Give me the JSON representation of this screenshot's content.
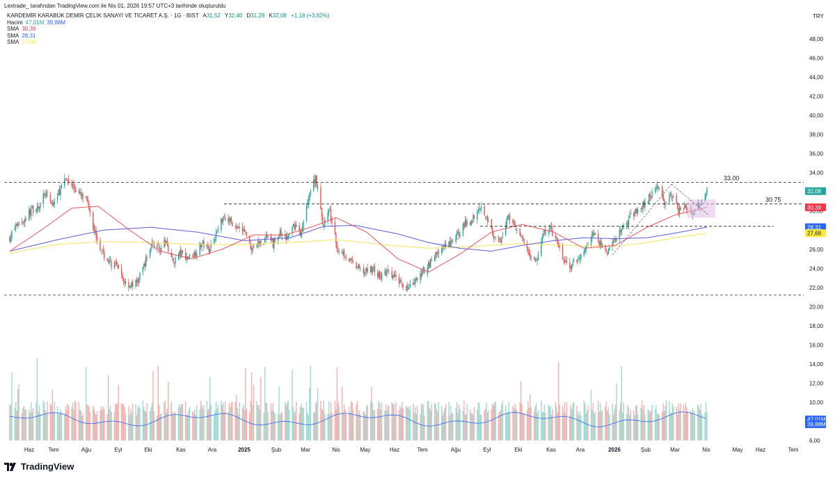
{
  "header": {
    "author_line": "Lextrade_ tarafından TradingView.com ile Nis 01, 2026 19:57 UTC+3 tarihinde oluşturuldu"
  },
  "legend": {
    "symbol": "KARDEMİR KARABÜK DEMİR ÇELİK SANAYİ VE TİCARET A.Ş. · 1G · BIST",
    "o_label": "A",
    "o": "31,52",
    "h_label": "Y",
    "h": "32,40",
    "l_label": "D",
    "l": "31,28",
    "c_label": "K",
    "c": "32,08",
    "change": "+1,18 (+3,82%)",
    "volume_label": "Hacim",
    "volume": "47,01M",
    "volume_ma": "39,88M",
    "sma1_label": "SMA",
    "sma1": "30,39",
    "sma2_label": "SMA",
    "sma2": "28,31",
    "sma3_label": "SMA",
    "sma3": "27,68"
  },
  "brand": "TradingView",
  "chart_data": {
    "type": "candlestick",
    "currency": "TRY",
    "y_ticks": [
      "48,00",
      "46,00",
      "44,00",
      "42,00",
      "40,00",
      "38,00",
      "36,00",
      "34,00",
      "32,00",
      "30,00",
      "28,00",
      "26,00",
      "24,00",
      "22,00",
      "20,00",
      "18,00",
      "16,00",
      "14,00",
      "12,00",
      "10,00",
      "8,00",
      "6,00"
    ],
    "x_ticks": [
      "Haz",
      "Tem",
      "Ağu",
      "Eyl",
      "Eki",
      "Kas",
      "Ara",
      "2025",
      "Şub",
      "Mar",
      "Nis",
      "May",
      "Haz",
      "Tem",
      "Ağu",
      "Eyl",
      "Eki",
      "Kas",
      "Ara",
      "2026",
      "Şub",
      "Mar",
      "Nis",
      "May",
      "Haz",
      "Tem"
    ],
    "bold_ticks": [
      "2025",
      "2026"
    ],
    "price_range": [
      5.0,
      50.0
    ],
    "close_path": [
      [
        "2024-05-15",
        27.2
      ],
      [
        "2024-05-22",
        28.6
      ],
      [
        "2024-05-29",
        29.0
      ],
      [
        "2024-06-05",
        30.1
      ],
      [
        "2024-06-12",
        30.5
      ],
      [
        "2024-06-19",
        31.8
      ],
      [
        "2024-06-26",
        30.6
      ],
      [
        "2024-07-03",
        32.1
      ],
      [
        "2024-07-10",
        33.4
      ],
      [
        "2024-07-17",
        32.5
      ],
      [
        "2024-07-24",
        31.6
      ],
      [
        "2024-07-31",
        30.9
      ],
      [
        "2024-08-07",
        27.8
      ],
      [
        "2024-08-14",
        25.6
      ],
      [
        "2024-08-21",
        24.6
      ],
      [
        "2024-08-28",
        24.2
      ],
      [
        "2024-09-04",
        22.7
      ],
      [
        "2024-09-11",
        22.2
      ],
      [
        "2024-09-18",
        22.6
      ],
      [
        "2024-09-25",
        24.6
      ],
      [
        "2024-10-02",
        26.6
      ],
      [
        "2024-10-09",
        26.0
      ],
      [
        "2024-10-16",
        26.8
      ],
      [
        "2024-10-23",
        24.6
      ],
      [
        "2024-10-30",
        25.6
      ],
      [
        "2024-11-06",
        25.1
      ],
      [
        "2024-11-13",
        25.6
      ],
      [
        "2024-11-20",
        26.6
      ],
      [
        "2024-11-27",
        26.1
      ],
      [
        "2024-12-04",
        27.6
      ],
      [
        "2024-12-11",
        29.5
      ],
      [
        "2024-12-18",
        29.0
      ],
      [
        "2024-12-25",
        28.0
      ],
      [
        "2025-01-01",
        28.0
      ],
      [
        "2025-01-08",
        26.1
      ],
      [
        "2025-01-15",
        26.6
      ],
      [
        "2025-01-22",
        27.1
      ],
      [
        "2025-01-29",
        26.6
      ],
      [
        "2025-02-05",
        27.6
      ],
      [
        "2025-02-12",
        27.1
      ],
      [
        "2025-02-19",
        28.6
      ],
      [
        "2025-02-26",
        27.6
      ],
      [
        "2025-03-05",
        31.6
      ],
      [
        "2025-03-12",
        33.6
      ],
      [
        "2025-03-19",
        28.6
      ],
      [
        "2025-03-26",
        30.0
      ],
      [
        "2025-04-02",
        26.1
      ],
      [
        "2025-04-09",
        25.6
      ],
      [
        "2025-04-16",
        24.6
      ],
      [
        "2025-04-23",
        24.0
      ],
      [
        "2025-04-30",
        23.6
      ],
      [
        "2025-05-07",
        24.1
      ],
      [
        "2025-05-14",
        23.1
      ],
      [
        "2025-05-21",
        23.6
      ],
      [
        "2025-05-28",
        23.1
      ],
      [
        "2025-06-04",
        22.6
      ],
      [
        "2025-06-11",
        21.8
      ],
      [
        "2025-06-18",
        22.6
      ],
      [
        "2025-06-25",
        23.6
      ],
      [
        "2025-07-02",
        24.6
      ],
      [
        "2025-07-09",
        25.6
      ],
      [
        "2025-07-16",
        26.1
      ],
      [
        "2025-07-23",
        26.6
      ],
      [
        "2025-07-30",
        27.6
      ],
      [
        "2025-08-06",
        28.6
      ],
      [
        "2025-08-13",
        29.1
      ],
      [
        "2025-08-20",
        30.6
      ],
      [
        "2025-08-27",
        29.6
      ],
      [
        "2025-09-03",
        27.1
      ],
      [
        "2025-09-10",
        26.6
      ],
      [
        "2025-09-17",
        29.6
      ],
      [
        "2025-09-24",
        28.6
      ],
      [
        "2025-10-01",
        27.1
      ],
      [
        "2025-10-08",
        25.6
      ],
      [
        "2025-10-15",
        24.6
      ],
      [
        "2025-10-22",
        27.6
      ],
      [
        "2025-10-29",
        28.1
      ],
      [
        "2025-11-05",
        26.6
      ],
      [
        "2025-11-12",
        24.6
      ],
      [
        "2025-11-19",
        24.1
      ],
      [
        "2025-11-26",
        25.1
      ],
      [
        "2025-12-03",
        26.1
      ],
      [
        "2025-12-10",
        27.6
      ],
      [
        "2025-12-17",
        26.6
      ],
      [
        "2025-12-24",
        25.6
      ],
      [
        "2025-12-31",
        27.1
      ],
      [
        "2026-01-07",
        28.1
      ],
      [
        "2026-01-14",
        29.1
      ],
      [
        "2026-01-21",
        30.1
      ],
      [
        "2026-01-28",
        30.6
      ],
      [
        "2026-02-04",
        31.6
      ],
      [
        "2026-02-11",
        32.6
      ],
      [
        "2026-02-18",
        31.1
      ],
      [
        "2026-02-25",
        31.6
      ],
      [
        "2026-03-04",
        30.1
      ],
      [
        "2026-03-11",
        30.6
      ],
      [
        "2026-03-18",
        29.6
      ],
      [
        "2026-03-25",
        30.9
      ],
      [
        "2026-04-01",
        32.08
      ]
    ],
    "sma_long": [
      [
        "2024-05-15",
        25.8
      ],
      [
        "2024-07-01",
        27.0
      ],
      [
        "2024-08-15",
        28.0
      ],
      [
        "2024-10-01",
        28.3
      ],
      [
        "2024-11-15",
        27.8
      ],
      [
        "2025-01-01",
        26.9
      ],
      [
        "2025-02-15",
        27.2
      ],
      [
        "2025-03-20",
        28.4
      ],
      [
        "2025-04-20",
        28.5
      ],
      [
        "2025-06-01",
        27.6
      ],
      [
        "2025-07-01",
        26.7
      ],
      [
        "2025-08-01",
        26.1
      ],
      [
        "2025-09-01",
        25.8
      ],
      [
        "2025-10-01",
        26.4
      ],
      [
        "2025-11-01",
        26.9
      ],
      [
        "2025-12-01",
        27.2
      ],
      [
        "2026-01-01",
        27.1
      ],
      [
        "2026-02-01",
        27.2
      ],
      [
        "2026-03-01",
        27.7
      ],
      [
        "2026-04-01",
        28.31
      ]
    ],
    "sma_200": [
      [
        "2024-05-15",
        25.6
      ],
      [
        "2024-07-01",
        26.5
      ],
      [
        "2024-08-15",
        26.8
      ],
      [
        "2024-10-01",
        26.7
      ],
      [
        "2024-11-15",
        26.5
      ],
      [
        "2025-01-01",
        26.5
      ],
      [
        "2025-02-15",
        26.7
      ],
      [
        "2025-04-01",
        27.0
      ],
      [
        "2025-05-15",
        26.5
      ],
      [
        "2025-07-01",
        26.1
      ],
      [
        "2025-08-15",
        26.3
      ],
      [
        "2025-10-01",
        26.6
      ],
      [
        "2025-11-15",
        26.4
      ],
      [
        "2026-01-01",
        26.3
      ],
      [
        "2026-02-01",
        26.7
      ],
      [
        "2026-03-01",
        27.2
      ],
      [
        "2026-04-01",
        27.68
      ]
    ],
    "sma_50": [
      [
        "2024-05-15",
        25.8
      ],
      [
        "2024-06-15",
        28.0
      ],
      [
        "2024-07-15",
        30.3
      ],
      [
        "2024-08-10",
        30.5
      ],
      [
        "2024-09-10",
        28.0
      ],
      [
        "2024-10-10",
        25.8
      ],
      [
        "2024-11-10",
        25.0
      ],
      [
        "2024-12-10",
        26.0
      ],
      [
        "2025-01-10",
        27.5
      ],
      [
        "2025-02-10",
        27.5
      ],
      [
        "2025-03-10",
        28.4
      ],
      [
        "2025-04-01",
        29.3
      ],
      [
        "2025-05-01",
        27.8
      ],
      [
        "2025-06-01",
        25.0
      ],
      [
        "2025-07-01",
        23.6
      ],
      [
        "2025-08-01",
        25.5
      ],
      [
        "2025-09-01",
        27.8
      ],
      [
        "2025-10-01",
        28.6
      ],
      [
        "2025-11-01",
        27.8
      ],
      [
        "2025-12-01",
        26.1
      ],
      [
        "2026-01-01",
        26.4
      ],
      [
        "2026-02-01",
        28.3
      ],
      [
        "2026-03-01",
        29.6
      ],
      [
        "2026-04-01",
        30.39
      ]
    ],
    "h_levels": [
      {
        "price": 33.0,
        "label": "33.00"
      },
      {
        "price": 30.75,
        "label": "30.75"
      },
      {
        "price": 28.4,
        "label": ""
      },
      {
        "price": 21.2,
        "label": ""
      }
    ],
    "last_labels": [
      {
        "value": "32,08",
        "price": 32.08,
        "color": "#26a69a"
      },
      {
        "value": "30,39",
        "price": 30.39,
        "color": "#f23645"
      },
      {
        "value": "28,31",
        "price": 28.31,
        "color": "#2962ff"
      },
      {
        "value": "27,68",
        "price": 27.68,
        "color": "#ffeb3b"
      },
      {
        "value": "47,01M",
        "price": 8.2,
        "color": "#2962ff"
      },
      {
        "value": "39,88M",
        "price": 7.7,
        "color": "#2962ff"
      }
    ],
    "colors": {
      "up": "#26a69a",
      "down": "#ef5350",
      "sma50": "#f0505a",
      "sma_long": "#5b5bd6",
      "sma200": "#f5e55a",
      "grid": "#000000",
      "axis_text": "#131722"
    }
  }
}
